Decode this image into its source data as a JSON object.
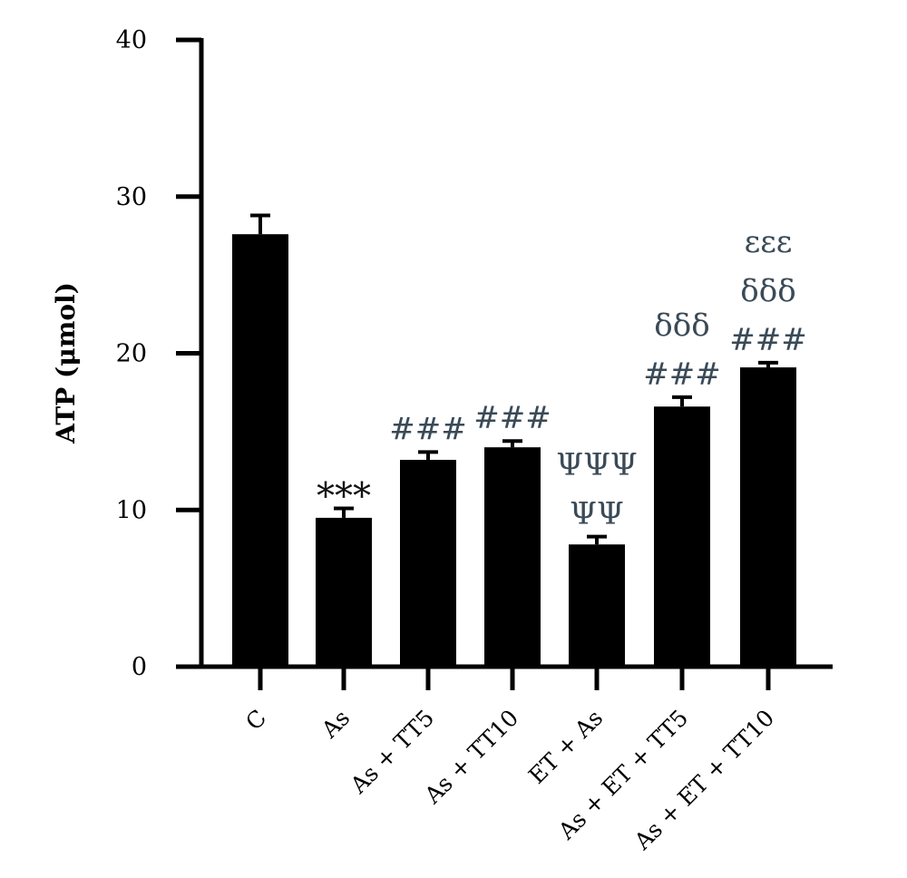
{
  "chart_data": {
    "type": "bar",
    "ylabel": "ATP (μmol)",
    "xlabel": "",
    "ylim": [
      0,
      40
    ],
    "yticks": [
      "0",
      "10",
      "20",
      "30",
      "40"
    ],
    "categories": [
      "C",
      "As",
      "As + TT5",
      "As + TT10",
      "ET + As",
      "As + ET + TT5",
      "As + ET + TT10"
    ],
    "values": [
      27.6,
      9.5,
      13.2,
      14.0,
      7.8,
      16.6,
      19.1
    ],
    "errors": [
      1.2,
      0.6,
      0.5,
      0.4,
      0.5,
      0.6,
      0.3
    ],
    "annotations": [
      [],
      [
        "***"
      ],
      [
        "###"
      ],
      [
        "###"
      ],
      [
        "ΨΨΨ",
        "ΨΨ"
      ],
      [
        "δδδ",
        "###"
      ],
      [
        "εεε",
        "δδδ",
        "###"
      ]
    ],
    "bar_color": "#000000",
    "annotation_color": "#3a4a57",
    "grid": false
  }
}
